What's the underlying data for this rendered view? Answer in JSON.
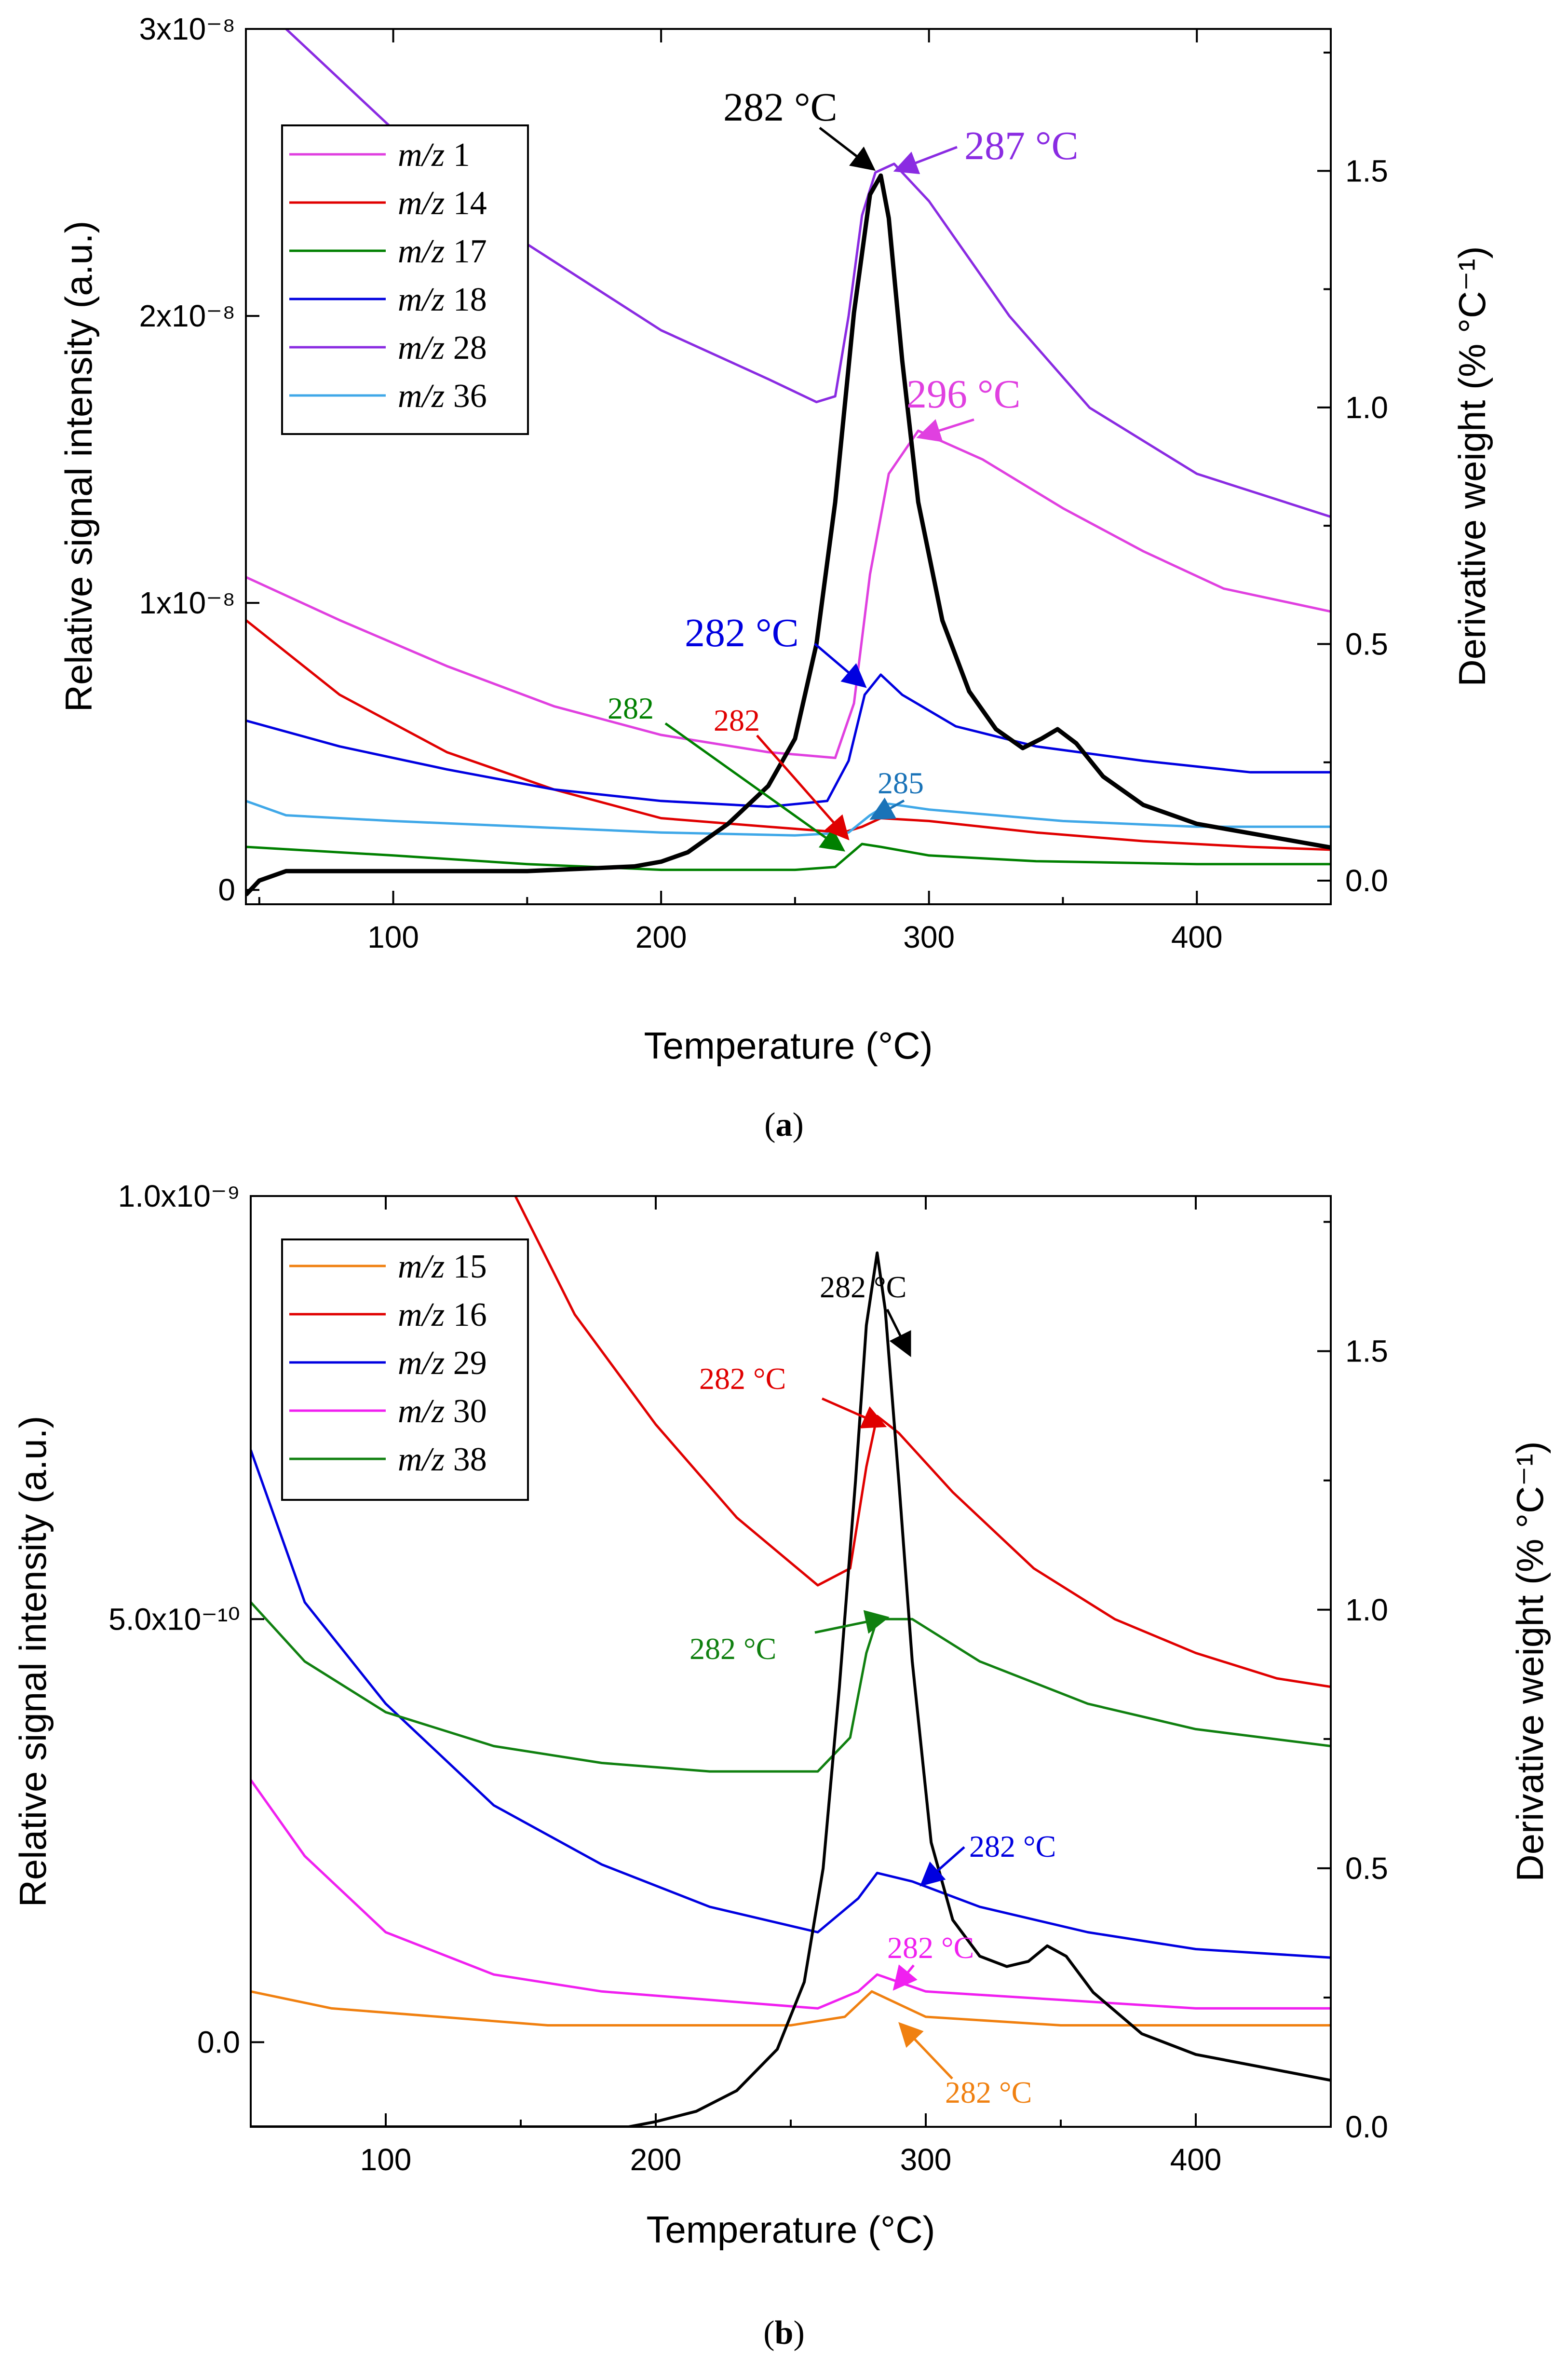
{
  "chart_data": [
    {
      "type": "line",
      "panel_label": "a",
      "xlabel": "Temperature (°C)",
      "ylabel": "Relative signal intensity (a.u.)",
      "y2label": "Derivative weight (% °C⁻¹)",
      "xlim": [
        45,
        450
      ],
      "ylim": [
        -5e-10,
        3e-08
      ],
      "y2lim": [
        -0.05,
        1.8
      ],
      "xticks": [
        100,
        200,
        300,
        400
      ],
      "yticks": [
        0,
        1e-08,
        2e-08,
        3e-08
      ],
      "ytick_labels": [
        "0",
        "1x10⁻⁸",
        "2x10⁻⁸",
        "3x10⁻⁸"
      ],
      "y2ticks": [
        0.0,
        0.5,
        1.0,
        1.5
      ],
      "y2tick_labels": [
        "0.0",
        "0.5",
        "1.0",
        "1.5"
      ],
      "legend": {
        "placement": "top-left",
        "prefix": "m/z"
      },
      "series": [
        {
          "name": "1",
          "color": "#e040e0",
          "axis": "left",
          "x": [
            45,
            80,
            120,
            160,
            200,
            240,
            265,
            272,
            278,
            285,
            296,
            320,
            350,
            380,
            410,
            450
          ],
          "y": [
            1.09e-08,
            9.4e-09,
            7.8e-09,
            6.4e-09,
            5.4e-09,
            4.8e-09,
            4.6e-09,
            6.5e-09,
            1.1e-08,
            1.45e-08,
            1.6e-08,
            1.5e-08,
            1.33e-08,
            1.18e-08,
            1.05e-08,
            9.7e-09
          ]
        },
        {
          "name": "14",
          "color": "#e00000",
          "axis": "left",
          "x": [
            45,
            80,
            120,
            160,
            200,
            240,
            268,
            275,
            282,
            300,
            340,
            380,
            420,
            450
          ],
          "y": [
            9.4e-09,
            6.8e-09,
            4.8e-09,
            3.5e-09,
            2.5e-09,
            2.2e-09,
            2e-09,
            2.2e-09,
            2.5e-09,
            2.4e-09,
            2e-09,
            1.7e-09,
            1.5e-09,
            1.4e-09
          ]
        },
        {
          "name": "17",
          "color": "#008000",
          "axis": "left",
          "x": [
            45,
            100,
            150,
            200,
            250,
            265,
            270,
            275,
            282,
            300,
            340,
            400,
            450
          ],
          "y": [
            1.5e-09,
            1.2e-09,
            9e-10,
            7e-10,
            7e-10,
            8e-10,
            1.2e-09,
            1.6e-09,
            1.5e-09,
            1.2e-09,
            1e-09,
            9e-10,
            9e-10
          ]
        },
        {
          "name": "18",
          "color": "#0000e0",
          "axis": "left",
          "x": [
            45,
            80,
            120,
            160,
            200,
            240,
            262,
            270,
            276,
            282,
            290,
            310,
            340,
            380,
            420,
            450
          ],
          "y": [
            5.9e-09,
            5e-09,
            4.2e-09,
            3.5e-09,
            3.1e-09,
            2.9e-09,
            3.1e-09,
            4.5e-09,
            6.8e-09,
            7.5e-09,
            6.8e-09,
            5.7e-09,
            5e-09,
            4.5e-09,
            4.1e-09,
            4.1e-09
          ]
        },
        {
          "name": "28",
          "color": "#8a2be2",
          "axis": "left",
          "x": [
            60,
            100,
            150,
            200,
            240,
            258,
            265,
            270,
            275,
            280,
            287,
            300,
            330,
            360,
            400,
            450
          ],
          "y": [
            3e-08,
            2.65e-08,
            2.25e-08,
            1.95e-08,
            1.78e-08,
            1.7e-08,
            1.72e-08,
            2e-08,
            2.35e-08,
            2.5e-08,
            2.53e-08,
            2.4e-08,
            2e-08,
            1.68e-08,
            1.45e-08,
            1.3e-08
          ]
        },
        {
          "name": "36",
          "color": "#40a8e8",
          "axis": "left",
          "x": [
            45,
            60,
            100,
            150,
            200,
            250,
            270,
            278,
            285,
            300,
            350,
            400,
            450
          ],
          "y": [
            3.1e-09,
            2.6e-09,
            2.4e-09,
            2.2e-09,
            2e-09,
            1.9e-09,
            2e-09,
            2.6e-09,
            3e-09,
            2.8e-09,
            2.4e-09,
            2.2e-09,
            2.2e-09
          ]
        },
        {
          "name": "",
          "color": "#000000",
          "axis": "right",
          "role": "derivative",
          "x": [
            45,
            50,
            60,
            100,
            150,
            190,
            200,
            210,
            225,
            240,
            250,
            258,
            265,
            272,
            278,
            282,
            285,
            290,
            296,
            305,
            315,
            325,
            335,
            342,
            348,
            355,
            365,
            380,
            400,
            420,
            440,
            450
          ],
          "y": [
            -0.03,
            0.0,
            0.02,
            0.02,
            0.02,
            0.03,
            0.04,
            0.06,
            0.12,
            0.2,
            0.3,
            0.5,
            0.8,
            1.2,
            1.45,
            1.49,
            1.4,
            1.1,
            0.8,
            0.55,
            0.4,
            0.32,
            0.28,
            0.3,
            0.32,
            0.29,
            0.22,
            0.16,
            0.12,
            0.1,
            0.08,
            0.07
          ]
        }
      ],
      "annotations": [
        {
          "text": "282 °C",
          "color": "#000000"
        },
        {
          "text": "287 °C",
          "color": "#8a2be2"
        },
        {
          "text": "296 °C",
          "color": "#e040e0"
        },
        {
          "text": "282 °C",
          "color": "#0000e0"
        },
        {
          "text": "282",
          "color": "#008000"
        },
        {
          "text": "282",
          "color": "#e00000"
        },
        {
          "text": "285",
          "color": "#1a73b8"
        }
      ]
    },
    {
      "type": "line",
      "panel_label": "b",
      "xlabel": "Temperature (°C)",
      "ylabel": "Relative signal intensity (a.u.)",
      "y2label": "Derivative weight (% °C⁻¹)",
      "xlim": [
        50,
        450
      ],
      "ylim": [
        -1e-10,
        1e-09
      ],
      "y2lim": [
        0.0,
        1.8
      ],
      "xticks": [
        100,
        200,
        300,
        400
      ],
      "yticks": [
        0,
        5e-10,
        1e-09
      ],
      "ytick_labels": [
        "0.0",
        "5.0x10⁻¹⁰",
        "1.0x10⁻⁹"
      ],
      "y2ticks": [
        0.0,
        0.5,
        1.0,
        1.5
      ],
      "y2tick_labels": [
        "0.0",
        "0.5",
        "1.0",
        "1.5"
      ],
      "legend": {
        "placement": "top-left",
        "prefix": "m/z"
      },
      "series": [
        {
          "name": "15",
          "color": "#f08010",
          "axis": "left",
          "x": [
            50,
            80,
            120,
            160,
            200,
            250,
            270,
            280,
            300,
            350,
            400,
            450
          ],
          "y": [
            6e-11,
            4e-11,
            3e-11,
            2e-11,
            2e-11,
            2e-11,
            3e-11,
            6e-11,
            3e-11,
            2e-11,
            2e-11,
            2e-11
          ]
        },
        {
          "name": "16",
          "color": "#e00000",
          "axis": "left",
          "x": [
            148,
            170,
            200,
            230,
            260,
            272,
            278,
            282,
            290,
            310,
            340,
            370,
            400,
            430,
            450
          ],
          "y": [
            1e-09,
            8.6e-10,
            7.3e-10,
            6.2e-10,
            5.4e-10,
            5.6e-10,
            6.8e-10,
            7.4e-10,
            7.2e-10,
            6.5e-10,
            5.6e-10,
            5e-10,
            4.6e-10,
            4.3e-10,
            4.2e-10
          ]
        },
        {
          "name": "29",
          "color": "#0000e0",
          "axis": "left",
          "x": [
            50,
            70,
            100,
            140,
            180,
            220,
            260,
            275,
            282,
            295,
            320,
            360,
            400,
            450
          ],
          "y": [
            7e-10,
            5.2e-10,
            4e-10,
            2.8e-10,
            2.1e-10,
            1.6e-10,
            1.3e-10,
            1.7e-10,
            2e-10,
            1.9e-10,
            1.6e-10,
            1.3e-10,
            1.1e-10,
            1e-10
          ]
        },
        {
          "name": "30",
          "color": "#f020f0",
          "axis": "left",
          "x": [
            50,
            70,
            100,
            140,
            180,
            220,
            260,
            275,
            282,
            300,
            350,
            400,
            450
          ],
          "y": [
            3.1e-10,
            2.2e-10,
            1.3e-10,
            8e-11,
            6e-11,
            5e-11,
            4e-11,
            6e-11,
            8e-11,
            6e-11,
            5e-11,
            4e-11,
            4e-11
          ]
        },
        {
          "name": "38",
          "color": "#108010",
          "axis": "left",
          "x": [
            50,
            70,
            100,
            140,
            180,
            220,
            260,
            272,
            278,
            282,
            295,
            320,
            360,
            400,
            450
          ],
          "y": [
            5.2e-10,
            4.5e-10,
            3.9e-10,
            3.5e-10,
            3.3e-10,
            3.2e-10,
            3.2e-10,
            3.6e-10,
            4.6e-10,
            5e-10,
            5e-10,
            4.5e-10,
            4e-10,
            3.7e-10,
            3.5e-10
          ]
        },
        {
          "name": "",
          "color": "#000000",
          "axis": "right",
          "role": "derivative",
          "x": [
            50,
            100,
            150,
            190,
            200,
            215,
            230,
            245,
            255,
            262,
            268,
            274,
            278,
            282,
            285,
            290,
            295,
            302,
            310,
            320,
            330,
            338,
            345,
            352,
            362,
            380,
            400,
            430,
            450
          ],
          "y": [
            0.0,
            0.0,
            0.0,
            0.0,
            0.01,
            0.03,
            0.07,
            0.15,
            0.28,
            0.5,
            0.85,
            1.25,
            1.55,
            1.69,
            1.58,
            1.25,
            0.9,
            0.55,
            0.4,
            0.33,
            0.31,
            0.32,
            0.35,
            0.33,
            0.26,
            0.18,
            0.14,
            0.11,
            0.09
          ]
        }
      ],
      "annotations": [
        {
          "text": "282 °C",
          "color": "#000000"
        },
        {
          "text": "282 °C",
          "color": "#e00000"
        },
        {
          "text": "282 °C",
          "color": "#108010"
        },
        {
          "text": "282 °C",
          "color": "#0000e0"
        },
        {
          "text": "282 °C",
          "color": "#f020f0"
        },
        {
          "text": "282 °C",
          "color": "#f08010"
        }
      ]
    }
  ]
}
